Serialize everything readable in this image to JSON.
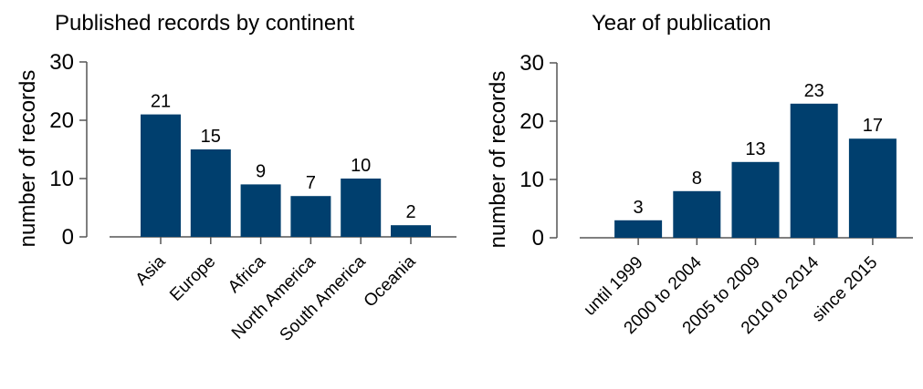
{
  "chart_data": [
    {
      "type": "bar",
      "title": "Published records by continent",
      "y_label": "number of records",
      "categories": [
        "Asia",
        "Europe",
        "Africa",
        "North America",
        "South America",
        "Oceania"
      ],
      "values": [
        21,
        15,
        9,
        7,
        10,
        2
      ],
      "color": "#003f6e",
      "ylim": [
        0,
        30
      ],
      "yticks": [
        0,
        10,
        20,
        30
      ]
    },
    {
      "type": "bar",
      "title": "Year of publication",
      "y_label": "number of records",
      "categories": [
        "until 1999",
        "2000 to 2004",
        "2005 to 2009",
        "2010 to 2014",
        "since 2015"
      ],
      "values": [
        3,
        8,
        13,
        23,
        17
      ],
      "color": "#003f6e",
      "ylim": [
        0,
        30
      ],
      "yticks": [
        0,
        10,
        20,
        30
      ]
    }
  ]
}
